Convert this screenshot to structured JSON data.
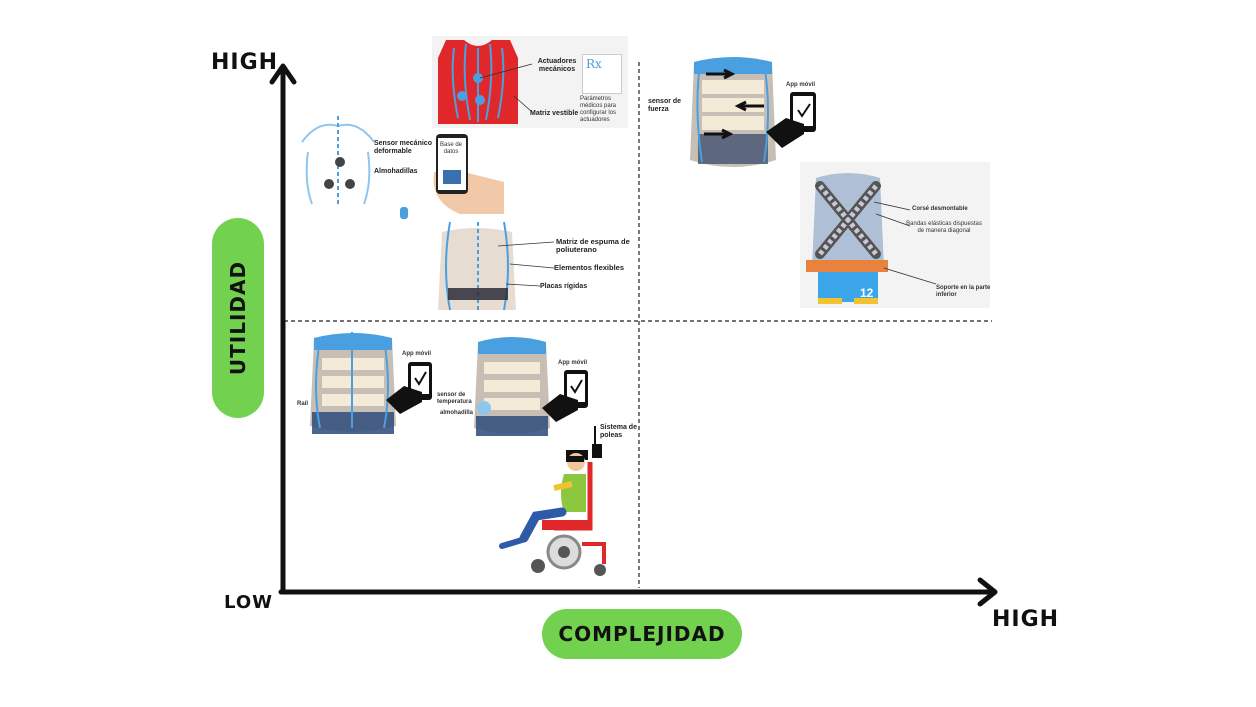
{
  "axes": {
    "y_high": "HIGH",
    "y_low": "LOW",
    "x_high": "HIGH",
    "y_title": "UTILIDAD",
    "x_title": "COMPLEJIDAD"
  },
  "colors": {
    "pill": "#72d24f",
    "vest_blue": "#4a9fe0",
    "vest_red": "#e0282a",
    "axis": "#111111"
  },
  "items": {
    "red_vest": {
      "actuators": "Actuadores mecánicos",
      "matrix": "Matriz vestible",
      "rx": "Rx",
      "params": "Parámetros médicos para configurar los actuadores"
    },
    "torso_sensor": {
      "sensor": "Sensor mecánico deformable",
      "pads": "Almohadillas"
    },
    "phone_db": {
      "db": "Base de datos"
    },
    "foam_vest": {
      "matrix": "Matriz de espuma de poliuterano",
      "flexible": "Elementos flexibles",
      "plates": "Placas rígidas"
    },
    "force_vest": {
      "sensor": "sensor de fuerza",
      "app": "App móvil"
    },
    "corset": {
      "corset": "Corsé desmontable",
      "bands": "Bandas elásticas dispuestas de manera diagonal",
      "support": "Soporte en la parte inferior",
      "number": "12"
    },
    "rail_vest": {
      "rail": "Raíl",
      "app": "App móvil"
    },
    "temp_vest": {
      "app": "App móvil",
      "sensor": "sensor de temperatura",
      "pad": "almohadilla"
    },
    "wheelchair": {
      "pulleys": "Sistema de poleas"
    }
  }
}
